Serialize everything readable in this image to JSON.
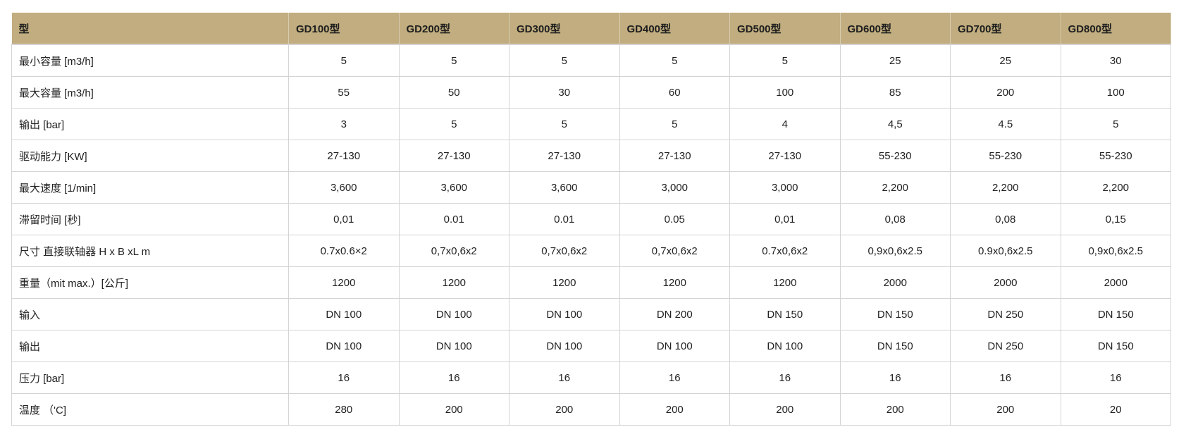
{
  "header": [
    "型",
    "GD100型",
    "GD200型",
    "GD300型",
    "GD400型",
    "GD500型",
    "GD600型",
    "GD700型",
    "GD800型"
  ],
  "rows": [
    {
      "label": "最小容量 [m3/h]",
      "values": [
        "5",
        "5",
        "5",
        "5",
        "5",
        "25",
        "25",
        "30"
      ]
    },
    {
      "label": "最大容量 [m3/h]",
      "values": [
        "55",
        "50",
        "30",
        "60",
        "100",
        "85",
        "200",
        "100"
      ]
    },
    {
      "label": "输出 [bar]",
      "values": [
        "3",
        "5",
        "5",
        "5",
        "4",
        "4,5",
        "4.5",
        "5"
      ]
    },
    {
      "label": "驱动能力 [KW]",
      "values": [
        "27-130",
        "27-130",
        "27-130",
        "27-130",
        "27-130",
        "55-230",
        "55-230",
        "55-230"
      ]
    },
    {
      "label": "最大速度 [1/min]",
      "values": [
        "3,600",
        "3,600",
        "3,600",
        "3,000",
        "3,000",
        "2,200",
        "2,200",
        "2,200"
      ]
    },
    {
      "label": "滞留时间 [秒]",
      "values": [
        "0,01",
        "0.01",
        "0.01",
        "0.05",
        "0,01",
        "0,08",
        "0,08",
        "0,15"
      ]
    },
    {
      "label": "尺寸 直接联轴器 H x B xL m",
      "values": [
        "0.7x0.6×2",
        "0,7x0,6x2",
        "0,7x0,6x2",
        "0,7x0,6x2",
        "0.7x0,6x2",
        "0,9x0,6x2.5",
        "0.9x0,6x2.5",
        "0,9x0,6x2.5"
      ]
    },
    {
      "label": "重量（mit max.）[公斤]",
      "values": [
        "1200",
        "1200",
        "1200",
        "1200",
        "1200",
        "2000",
        "2000",
        "2000"
      ]
    },
    {
      "label": "输入",
      "values": [
        "DN 100",
        "DN 100",
        "DN 100",
        "DN 200",
        "DN 150",
        "DN 150",
        "DN 250",
        "DN 150"
      ]
    },
    {
      "label": "输出",
      "values": [
        "DN 100",
        "DN 100",
        "DN 100",
        "DN 100",
        "DN 100",
        "DN 150",
        "DN 250",
        "DN 150"
      ]
    },
    {
      "label": "压力 [bar]",
      "values": [
        "16",
        "16",
        "16",
        "16",
        "16",
        "16",
        "16",
        "16"
      ]
    },
    {
      "label": "温度 （'C]",
      "values": [
        "280",
        "200",
        "200",
        "200",
        "200",
        "200",
        "200",
        "20"
      ]
    }
  ],
  "colors": {
    "header_bg": "#c1ad7f",
    "border": "#d4d4d4"
  }
}
